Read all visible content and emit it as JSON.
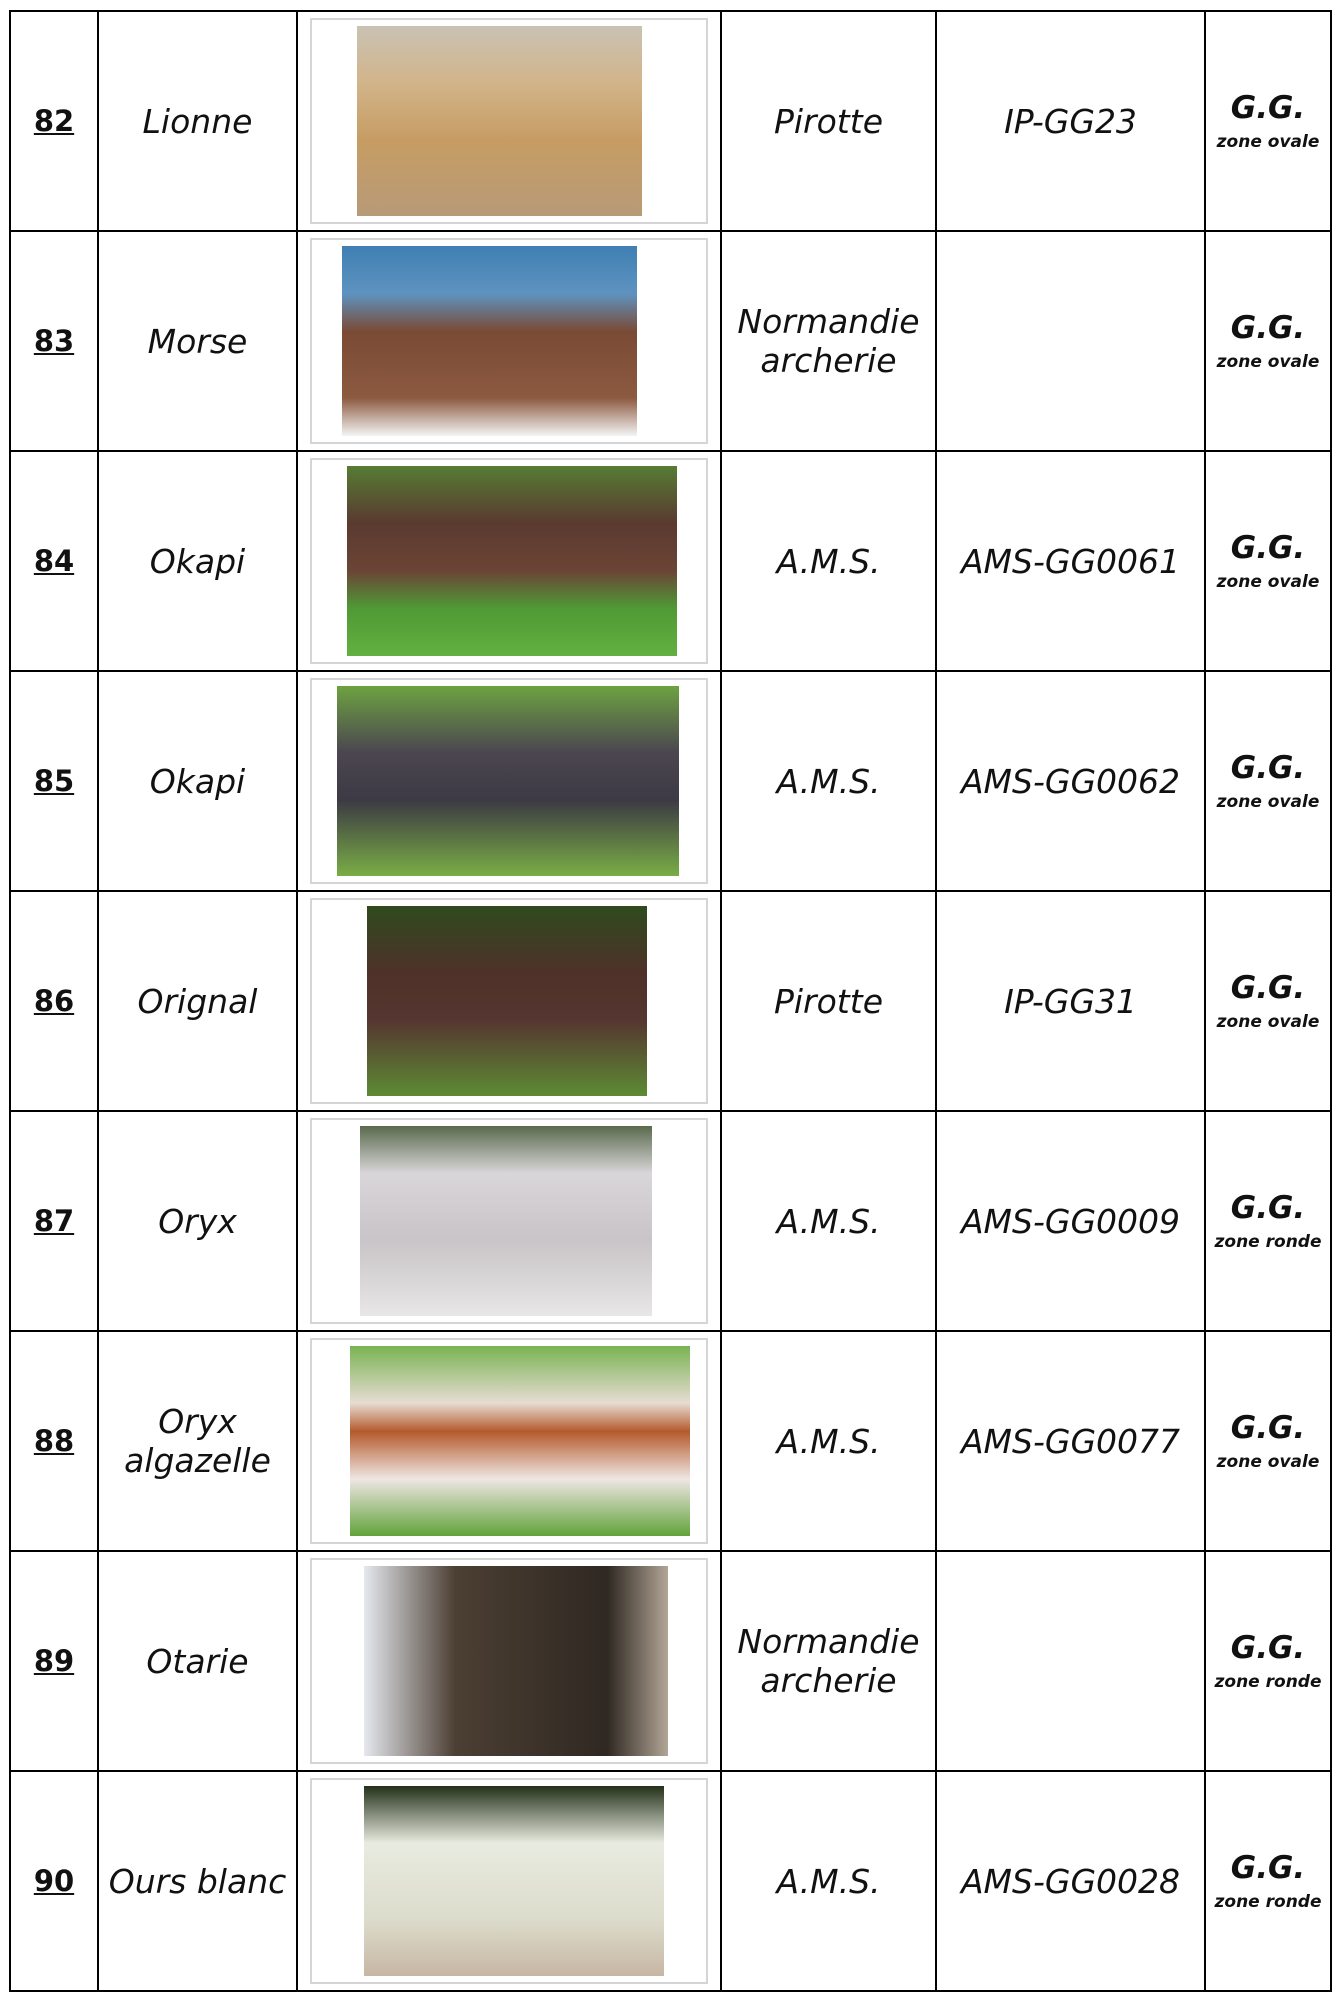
{
  "table": {
    "rows": [
      {
        "number": "82",
        "name": "Lionne",
        "maker": "Pirotte",
        "ref": "IP-GG23",
        "group": "G.G.",
        "zone": "zone ovale"
      },
      {
        "number": "83",
        "name": "Morse",
        "maker": "Normandie archerie",
        "group": "G.G.",
        "zone": "zone ovale"
      },
      {
        "number": "84",
        "name": "Okapi",
        "maker": "A.M.S.",
        "ref": "AMS-GG0061",
        "group": "G.G.",
        "zone": "zone ovale"
      },
      {
        "number": "85",
        "name": "Okapi",
        "maker": "A.M.S.",
        "ref": "AMS-GG0062",
        "group": "G.G.",
        "zone": "zone ovale"
      },
      {
        "number": "86",
        "name": "Orignal",
        "maker": "Pirotte",
        "ref": "IP-GG31",
        "group": "G.G.",
        "zone": "zone ovale"
      },
      {
        "number": "87",
        "name": "Oryx",
        "maker": "A.M.S.",
        "ref": "AMS-GG0009",
        "group": "G.G.",
        "zone": "zone ronde"
      },
      {
        "number": "88",
        "name": "Oryx algazelle",
        "maker": "A.M.S.",
        "ref": "AMS-GG0077",
        "group": "G.G.",
        "zone": "zone ovale"
      },
      {
        "number": "89",
        "name": "Otarie",
        "maker": "Normandie archerie",
        "group": "G.G.",
        "zone": "zone ronde"
      },
      {
        "number": "90",
        "name": "Ours blanc",
        "maker": "A.M.S.",
        "ref": "AMS-GG0028",
        "group": "G.G.",
        "zone": "zone ronde"
      }
    ]
  }
}
